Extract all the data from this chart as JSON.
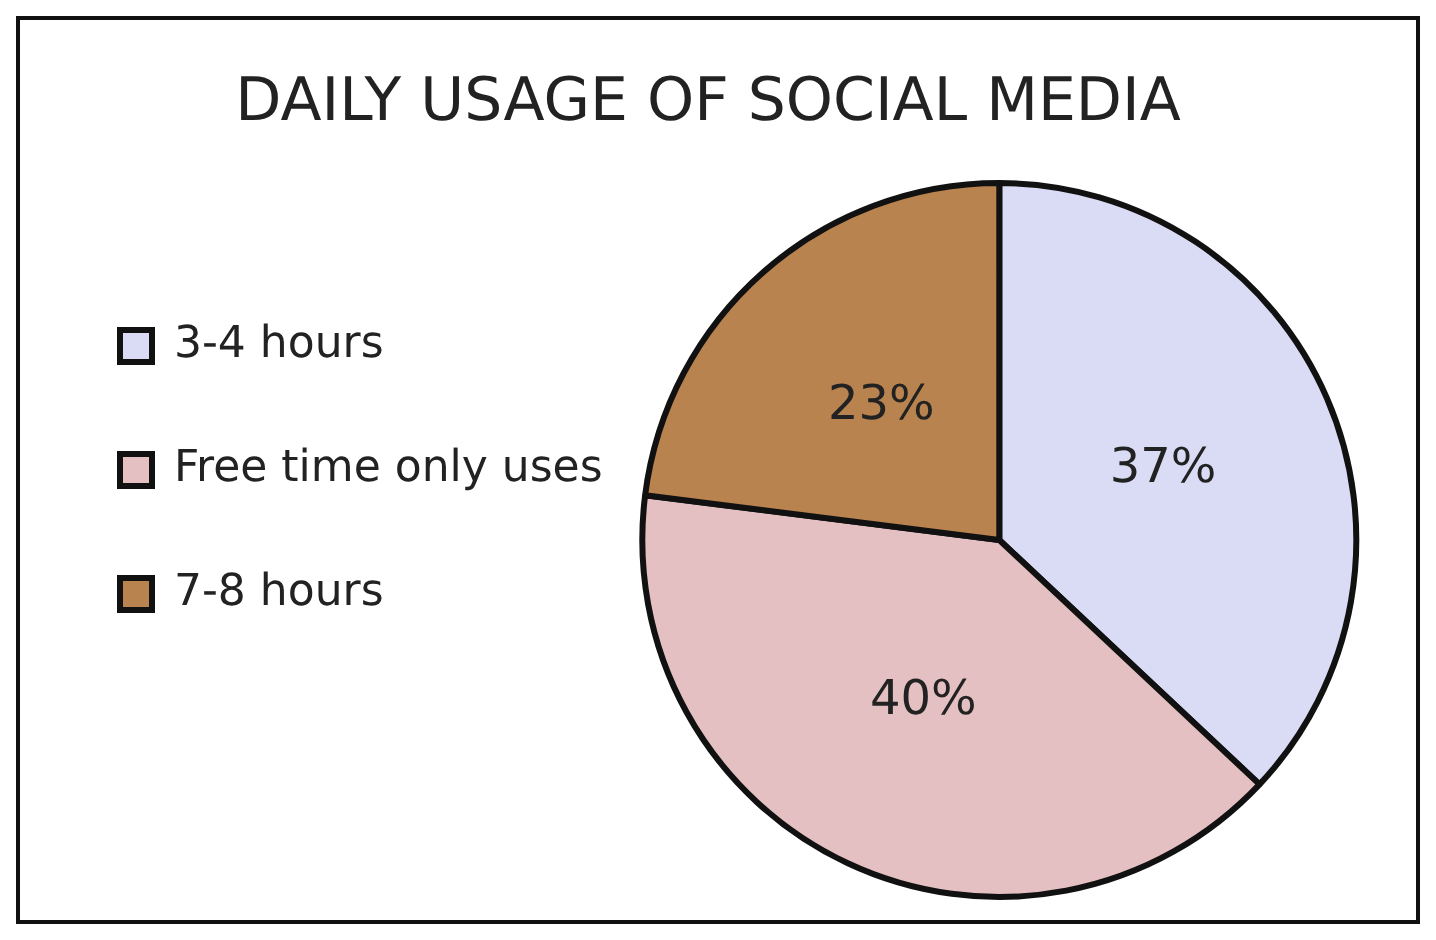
{
  "chart_data": {
    "type": "pie",
    "title": "DAILY USAGE OF SOCIAL MEDIA",
    "categories": [
      "3-4 hours",
      "Free time only uses",
      "7-8 hours"
    ],
    "values": [
      37,
      40,
      23
    ],
    "colors": [
      "#d9dcf4",
      "#e5c0c2",
      "#b9834f"
    ],
    "value_labels": [
      "37%",
      "40%",
      "23%"
    ],
    "legend": "left"
  }
}
